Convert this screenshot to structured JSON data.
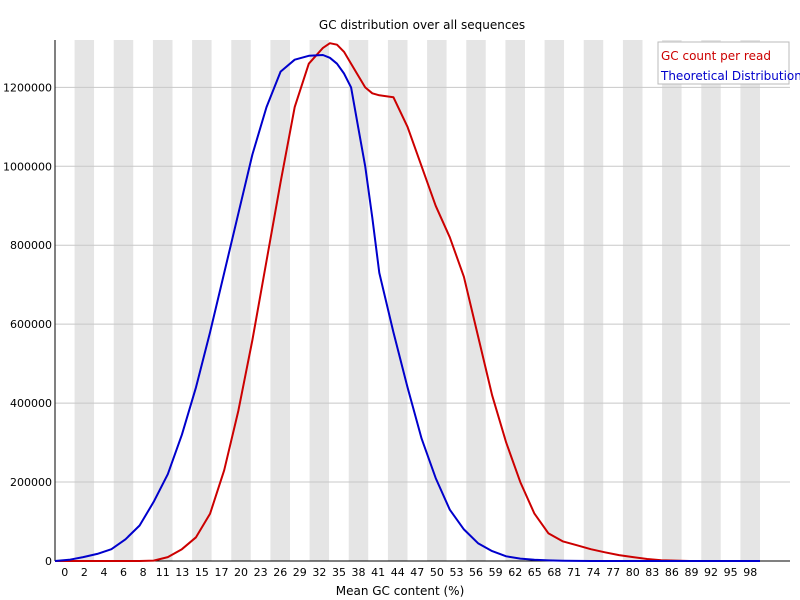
{
  "chart_data": {
    "type": "line",
    "title": "GC distribution over all sequences",
    "xlabel": "Mean GC content (%)",
    "ylabel": "",
    "xlim": [
      0,
      100
    ],
    "ylim": [
      0,
      1320000
    ],
    "grid": true,
    "legend_position": "top-right",
    "x_tick_labels": [
      "0",
      "2",
      "4",
      "6",
      "8",
      "11",
      "13",
      "15",
      "17",
      "20",
      "23",
      "26",
      "29",
      "32",
      "35",
      "38",
      "41",
      "44",
      "47",
      "50",
      "53",
      "56",
      "59",
      "62",
      "65",
      "68",
      "71",
      "74",
      "77",
      "80",
      "83",
      "86",
      "89",
      "92",
      "95",
      "98"
    ],
    "y_ticks": [
      0,
      200000,
      400000,
      600000,
      800000,
      1000000,
      1200000
    ],
    "y_tick_labels": [
      "0",
      "200000",
      "400000",
      "600000",
      "800000",
      "1000000",
      "1200000"
    ],
    "x": [
      0,
      2,
      4,
      6,
      8,
      10,
      12,
      14,
      16,
      18,
      20,
      22,
      24,
      26,
      28,
      30,
      32,
      34,
      36,
      38,
      39,
      40,
      41,
      42,
      43,
      44,
      45,
      46,
      48,
      50,
      52,
      54,
      56,
      58,
      60,
      62,
      64,
      66,
      68,
      70,
      72,
      74,
      76,
      78,
      80,
      82,
      84,
      86,
      88,
      90,
      92,
      94,
      96,
      98,
      100
    ],
    "series": [
      {
        "name": "GC count per read",
        "color": "#cc0000",
        "values": [
          0,
          0,
          0,
          0,
          0,
          0,
          0,
          1000,
          10000,
          30000,
          60000,
          120000,
          230000,
          380000,
          560000,
          760000,
          960000,
          1150000,
          1260000,
          1300000,
          1312000,
          1308000,
          1290000,
          1260000,
          1230000,
          1200000,
          1185000,
          1180000,
          1175000,
          1100000,
          1000000,
          900000,
          820000,
          720000,
          570000,
          420000,
          300000,
          200000,
          120000,
          70000,
          50000,
          40000,
          30000,
          22000,
          15000,
          10000,
          5000,
          2000,
          1000,
          0,
          0,
          0,
          0,
          0,
          0
        ]
      },
      {
        "name": "Theoretical Distribution",
        "color": "#0000cc",
        "values": [
          0,
          3000,
          10000,
          18000,
          30000,
          55000,
          90000,
          150000,
          220000,
          320000,
          440000,
          580000,
          730000,
          880000,
          1030000,
          1150000,
          1240000,
          1270000,
          1280000,
          1282000,
          1275000,
          1260000,
          1235000,
          1200000,
          1100000,
          1000000,
          870000,
          730000,
          580000,
          440000,
          310000,
          210000,
          130000,
          80000,
          45000,
          25000,
          12000,
          6000,
          3000,
          1500,
          700,
          300,
          100,
          0,
          0,
          0,
          0,
          0,
          0,
          0,
          0,
          0,
          0,
          0,
          0
        ]
      }
    ]
  }
}
